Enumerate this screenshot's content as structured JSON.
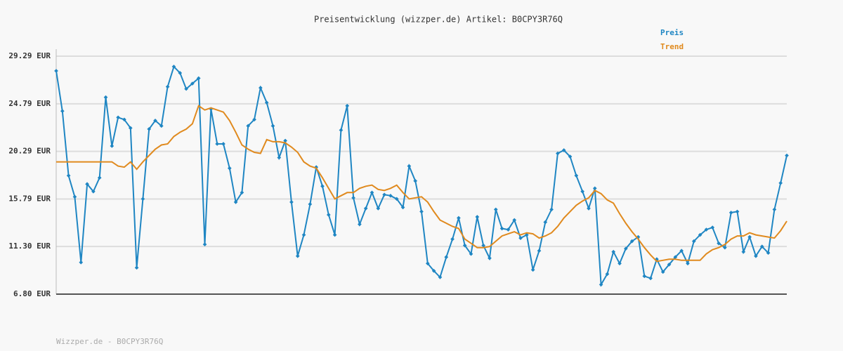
{
  "chart_data": {
    "type": "line",
    "title": "Preisentwicklung (wizzper.de) Artikel: B0CPY3R76Q",
    "footer": "Wizzper.de - B0CPY3R76Q",
    "ylim": [
      6.8,
      29.29
    ],
    "yticks": [
      {
        "value": 6.8,
        "label": "6.80 EUR"
      },
      {
        "value": 11.3,
        "label": "11.30 EUR"
      },
      {
        "value": 15.79,
        "label": "15.79 EUR"
      },
      {
        "value": 20.29,
        "label": "20.29 EUR"
      },
      {
        "value": 24.79,
        "label": "24.79 EUR"
      },
      {
        "value": 29.29,
        "label": "29.29 EUR"
      }
    ],
    "grid": true,
    "legend": "top-right",
    "series": [
      {
        "name": "Preis",
        "color": "#1f86c3",
        "markers": true,
        "values": [
          27.9,
          24.1,
          18.0,
          16.0,
          9.8,
          17.2,
          16.5,
          17.8,
          25.4,
          20.8,
          23.5,
          23.3,
          22.5,
          9.3,
          15.8,
          22.4,
          23.2,
          22.7,
          26.4,
          28.3,
          27.7,
          26.2,
          26.7,
          27.2,
          11.5,
          24.3,
          21.0,
          21.0,
          18.7,
          15.5,
          16.4,
          22.7,
          23.3,
          26.3,
          24.9,
          22.7,
          19.7,
          21.3,
          15.5,
          10.4,
          12.4,
          15.3,
          18.8,
          17.0,
          14.3,
          12.4,
          22.3,
          24.6,
          15.9,
          13.4,
          14.9,
          16.4,
          14.9,
          16.2,
          16.1,
          15.8,
          15.0,
          18.9,
          17.5,
          14.6,
          9.7,
          9.0,
          8.4,
          10.3,
          12.0,
          14.0,
          11.4,
          10.6,
          14.1,
          11.4,
          10.2,
          14.8,
          13.0,
          12.9,
          13.8,
          12.1,
          12.4,
          9.1,
          10.9,
          13.6,
          14.8,
          20.1,
          20.4,
          19.8,
          18.0,
          16.5,
          14.9,
          16.8,
          7.7,
          8.7,
          10.8,
          9.7,
          11.1,
          11.8,
          12.2,
          8.5,
          8.3,
          10.1,
          8.9,
          9.6,
          10.3,
          10.9,
          9.7,
          11.8,
          12.4,
          12.9,
          13.1,
          11.6,
          11.2,
          14.5,
          14.6,
          10.8,
          12.2,
          10.4,
          11.3,
          10.7,
          14.8,
          17.3,
          19.9
        ]
      },
      {
        "name": "Trend",
        "color": "#e08a1e",
        "markers": false,
        "values": [
          19.3,
          19.3,
          19.3,
          19.3,
          19.3,
          19.3,
          19.3,
          19.3,
          19.3,
          19.3,
          18.9,
          18.8,
          19.3,
          18.6,
          19.3,
          19.9,
          20.5,
          20.9,
          21.0,
          21.7,
          22.1,
          22.4,
          22.9,
          24.6,
          24.2,
          24.4,
          24.2,
          24.0,
          23.2,
          22.1,
          20.9,
          20.5,
          20.2,
          20.1,
          21.4,
          21.2,
          21.2,
          21.1,
          20.7,
          20.2,
          19.3,
          18.9,
          18.7,
          17.8,
          16.8,
          15.8,
          16.1,
          16.4,
          16.4,
          16.8,
          17.0,
          17.1,
          16.7,
          16.6,
          16.8,
          17.1,
          16.4,
          15.8,
          15.9,
          16.0,
          15.5,
          14.6,
          13.8,
          13.5,
          13.2,
          13.0,
          12.0,
          11.6,
          11.2,
          11.2,
          11.3,
          11.8,
          12.3,
          12.5,
          12.7,
          12.4,
          12.6,
          12.5,
          12.1,
          12.3,
          12.6,
          13.2,
          14.0,
          14.6,
          15.2,
          15.6,
          15.9,
          16.6,
          16.3,
          15.7,
          15.4,
          14.4,
          13.5,
          12.7,
          12.0,
          11.2,
          10.5,
          9.9,
          10.0,
          10.1,
          10.1,
          10.0,
          10.0,
          10.0,
          10.0,
          10.6,
          11.0,
          11.2,
          11.5,
          12.0,
          12.3,
          12.3,
          12.6,
          12.4,
          12.3,
          12.2,
          12.1,
          12.8,
          13.7
        ]
      }
    ]
  }
}
